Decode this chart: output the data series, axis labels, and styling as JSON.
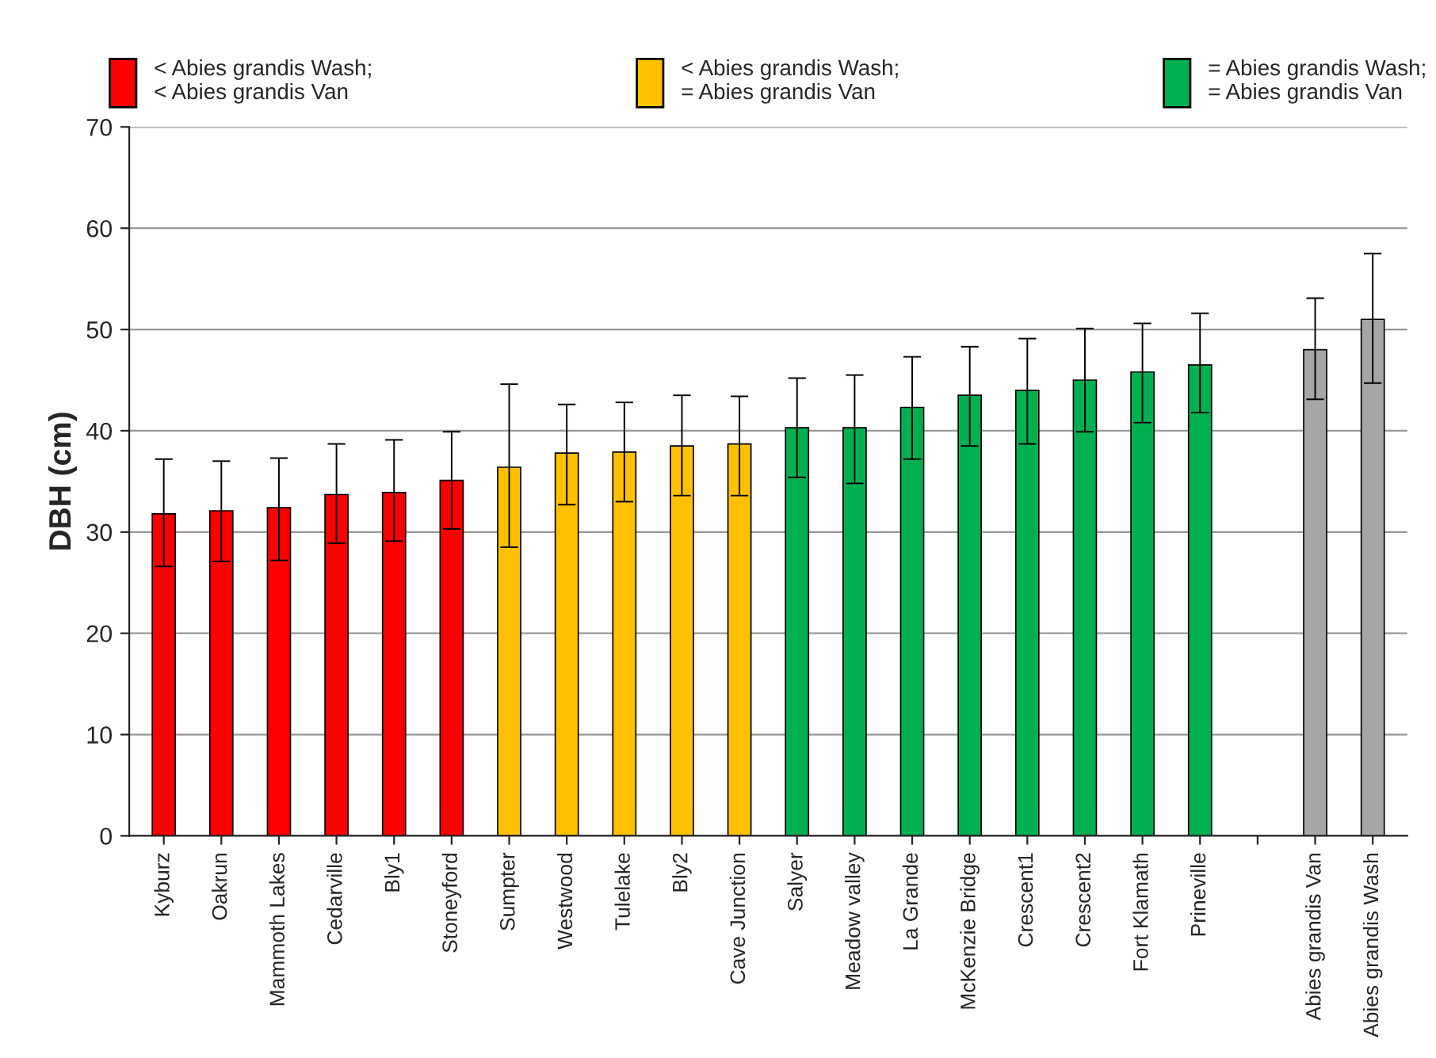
{
  "chart_data": {
    "type": "bar",
    "ylabel": "DBH (cm)",
    "categories": [
      "Kyburz",
      "Oakrun",
      "Mammoth Lakes",
      "Cedarville",
      "Bly1",
      "Stoneyford",
      "Sumpter",
      "Westwood",
      "Tulelake",
      "Bly2",
      "Cave Junction",
      "Salyer",
      "Meadow valley",
      "La Grande",
      "McKenzie Bridge",
      "Crescent1",
      "Crescent2",
      "Fort Klamath",
      "Prineville",
      null,
      "Abies grandis Van",
      "Abies grandis Wash"
    ],
    "series": [
      {
        "name": "< Abies grandis Wash;\n< Abies grandis Van",
        "color": "#ff0000",
        "values": [
          31.8,
          32.1,
          32.4,
          33.7,
          33.9,
          35.1,
          null,
          null,
          null,
          null,
          null,
          null,
          null,
          null,
          null,
          null,
          null,
          null,
          null,
          null,
          null,
          null
        ],
        "errors": [
          [
            26.6,
            37.2
          ],
          [
            27.1,
            37.0
          ],
          [
            27.2,
            37.3
          ],
          [
            28.9,
            38.7
          ],
          [
            29.1,
            39.1
          ],
          [
            30.3,
            39.9
          ],
          null,
          null,
          null,
          null,
          null,
          null,
          null,
          null,
          null,
          null,
          null,
          null,
          null,
          null,
          null,
          null
        ]
      },
      {
        "name": "< Abies grandis Wash;\n= Abies grandis Van",
        "color": "#ffc000",
        "values": [
          null,
          null,
          null,
          null,
          null,
          null,
          36.4,
          37.8,
          37.9,
          38.5,
          38.7,
          null,
          null,
          null,
          null,
          null,
          null,
          null,
          null,
          null,
          null,
          null
        ],
        "errors": [
          null,
          null,
          null,
          null,
          null,
          null,
          [
            28.5,
            44.6
          ],
          [
            32.7,
            42.6
          ],
          [
            33.0,
            42.8
          ],
          [
            33.6,
            43.5
          ],
          [
            33.6,
            43.4
          ],
          null,
          null,
          null,
          null,
          null,
          null,
          null,
          null,
          null,
          null,
          null
        ]
      },
      {
        "name": "= Abies grandis Wash;\n= Abies grandis Van",
        "color": "#00b050",
        "values": [
          null,
          null,
          null,
          null,
          null,
          null,
          null,
          null,
          null,
          null,
          null,
          40.3,
          40.3,
          42.3,
          43.5,
          44.0,
          45.0,
          45.8,
          46.5,
          null,
          null,
          null
        ],
        "errors": [
          null,
          null,
          null,
          null,
          null,
          null,
          null,
          null,
          null,
          null,
          null,
          [
            35.4,
            45.2
          ],
          [
            34.8,
            45.5
          ],
          [
            37.2,
            47.3
          ],
          [
            38.5,
            48.3
          ],
          [
            38.7,
            49.1
          ],
          [
            39.9,
            50.1
          ],
          [
            40.8,
            50.6
          ],
          [
            41.8,
            51.6
          ],
          null,
          null,
          null
        ]
      },
      {
        "color": "#a6a6a6",
        "values": [
          null,
          null,
          null,
          null,
          null,
          null,
          null,
          null,
          null,
          null,
          null,
          null,
          null,
          null,
          null,
          null,
          null,
          null,
          null,
          null,
          48.0,
          51.0
        ],
        "errors": [
          null,
          null,
          null,
          null,
          null,
          null,
          null,
          null,
          null,
          null,
          null,
          null,
          null,
          null,
          null,
          null,
          null,
          null,
          null,
          null,
          [
            43.1,
            53.1
          ],
          [
            44.7,
            57.5
          ]
        ]
      }
    ],
    "ylim": [
      0,
      70
    ],
    "yticks": [
      0,
      10,
      20,
      30,
      40,
      50,
      60,
      70
    ],
    "grid": "y",
    "legend": "top"
  }
}
